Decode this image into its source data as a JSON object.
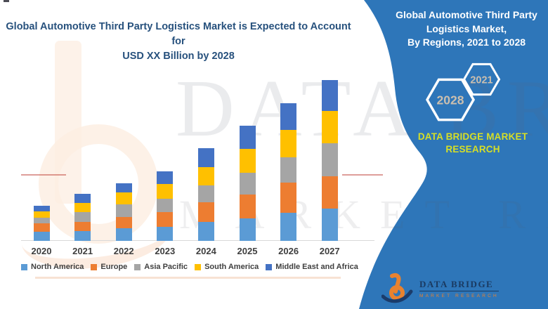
{
  "header": {
    "title_line1": "Global Automotive Third Party Logistics Market is Expected to Account for",
    "title_line2": "USD XX Billion by 2028"
  },
  "side_panel": {
    "panel_color": "#2E76B9",
    "title_line1": "Global Automotive Third Party",
    "title_line2": "Logistics Market,",
    "title_line3": "By Regions, 2021 to 2028",
    "hexagon_start_year": "2021",
    "hexagon_end_year": "2028",
    "hexagon_text_color": "#CBBFAF",
    "brand_line1": "DATA BRIDGE MARKET",
    "brand_line2": "RESEARCH",
    "brand_text_color": "#D6DF26"
  },
  "chart_data": {
    "type": "bar",
    "stacked": true,
    "title": "",
    "xlabel": "",
    "ylabel": "",
    "units": "USD Billion (values unlabeled in source, shown as XX); series values are relative estimates from bar heights",
    "value_axis_visible": false,
    "grid": false,
    "legend_position": "bottom",
    "ylim": [
      0,
      240
    ],
    "categories": [
      "2020",
      "2021",
      "2022",
      "2023",
      "2024",
      "2025",
      "2026",
      "2027"
    ],
    "series": [
      {
        "name": "North America",
        "color": "#5B9BD5",
        "values": [
          13,
          14,
          18,
          20,
          27,
          32,
          40,
          46
        ]
      },
      {
        "name": "Europe",
        "color": "#ED7D31",
        "values": [
          12,
          13,
          16,
          21,
          28,
          34,
          43,
          46
        ]
      },
      {
        "name": "Asia Pacific",
        "color": "#A5A5A5",
        "values": [
          8,
          14,
          18,
          19,
          24,
          31,
          36,
          47
        ]
      },
      {
        "name": "South America",
        "color": "#FFC000",
        "values": [
          9,
          13,
          17,
          21,
          26,
          34,
          39,
          46
        ]
      },
      {
        "name": "Middle East and Africa",
        "color": "#4472C4",
        "values": [
          8,
          13,
          13,
          18,
          27,
          33,
          38,
          44
        ]
      }
    ],
    "totals": [
      50,
      67,
      82,
      99,
      132,
      164,
      196,
      229
    ]
  },
  "watermark": {
    "text_line1": "DATA BRI",
    "text_line2": "MARKET RESEA"
  },
  "footer": {
    "brand": "DATA BRIDGE",
    "sub_brand": "MARKET RESEARCH"
  }
}
